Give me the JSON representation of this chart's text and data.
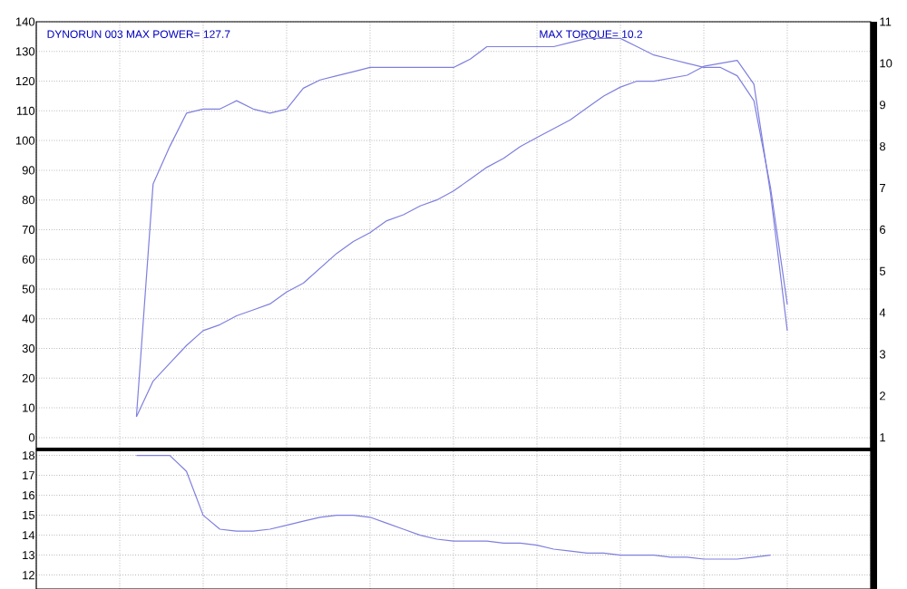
{
  "chart_data": [
    {
      "type": "line",
      "categories": [
        null,
        null,
        null,
        null,
        null,
        null,
        null,
        null,
        null,
        null,
        null,
        null,
        null,
        null,
        null,
        null,
        null,
        null,
        null,
        null,
        null,
        null,
        null,
        null,
        null,
        null,
        null,
        null,
        null,
        null,
        null,
        null,
        null,
        null,
        null,
        null,
        null,
        null,
        null,
        null,
        null,
        null,
        null,
        null,
        null,
        null,
        null,
        null,
        null,
        null,
        null
      ],
      "series": [
        {
          "color": "#7f7fdf",
          "values": [
            null,
            null,
            null,
            null,
            null,
            null,
            7,
            19,
            25,
            31,
            36,
            38,
            41,
            43,
            45,
            49,
            52,
            57,
            62,
            66,
            69,
            73,
            75,
            78,
            80,
            83,
            87,
            91,
            94,
            98,
            101,
            104,
            107,
            111,
            115,
            118,
            120,
            120,
            121,
            122,
            125,
            126,
            127,
            119,
            82,
            36,
            null,
            null,
            null,
            null,
            null
          ]
        },
        {
          "color": "#7f7fdf",
          "axis": "y2",
          "values": [
            null,
            null,
            null,
            null,
            null,
            null,
            1.5,
            7.1,
            8.0,
            8.8,
            8.9,
            8.9,
            9.1,
            8.9,
            8.8,
            8.9,
            9.4,
            9.6,
            9.7,
            9.8,
            9.9,
            9.9,
            9.9,
            9.9,
            9.9,
            9.9,
            10.1,
            10.4,
            10.4,
            10.4,
            10.4,
            10.4,
            10.5,
            10.6,
            10.6,
            10.6,
            10.4,
            10.2,
            10.1,
            10.0,
            9.9,
            9.9,
            9.7,
            9.1,
            7.0,
            4.2,
            null,
            null,
            null,
            null,
            null
          ]
        }
      ],
      "ylim": [
        -4,
        140
      ],
      "yticks": [
        0,
        10,
        20,
        30,
        40,
        50,
        60,
        70,
        80,
        90,
        100,
        110,
        120,
        130,
        140
      ],
      "y2lim": [
        0.71,
        11
      ],
      "y2ticks": [
        1,
        2,
        3,
        4,
        5,
        6,
        7,
        8,
        9,
        10,
        11
      ],
      "grid": true,
      "annotations": [
        "DYNORUN 003  MAX POWER= 127.7",
        "MAX TORQUE= 10.2"
      ]
    },
    {
      "type": "line",
      "categories": [
        null,
        null,
        null,
        null,
        null,
        null,
        null,
        null,
        null,
        null,
        null,
        null,
        null,
        null,
        null,
        null,
        null,
        null,
        null,
        null,
        null,
        null,
        null,
        null,
        null,
        null,
        null,
        null,
        null,
        null,
        null,
        null,
        null,
        null,
        null,
        null,
        null,
        null,
        null,
        null,
        null,
        null,
        null,
        null,
        null,
        null,
        null,
        null,
        null,
        null,
        null
      ],
      "series": [
        {
          "color": "#7f7fdf",
          "values": [
            null,
            null,
            null,
            null,
            null,
            null,
            18,
            18,
            18,
            17.2,
            15.0,
            14.3,
            14.2,
            14.2,
            14.3,
            14.5,
            14.7,
            14.9,
            15.0,
            15.0,
            14.9,
            14.6,
            14.3,
            14.0,
            13.8,
            13.7,
            13.7,
            13.7,
            13.6,
            13.6,
            13.5,
            13.3,
            13.2,
            13.1,
            13.1,
            13.0,
            13.0,
            13.0,
            12.9,
            12.9,
            12.8,
            12.8,
            12.8,
            12.9,
            13.0,
            null,
            null,
            null,
            null,
            null,
            null
          ]
        }
      ],
      "ylim": [
        11.3,
        18.3
      ],
      "yticks": [
        12,
        13,
        14,
        15,
        16,
        17,
        18
      ],
      "grid": true
    }
  ]
}
